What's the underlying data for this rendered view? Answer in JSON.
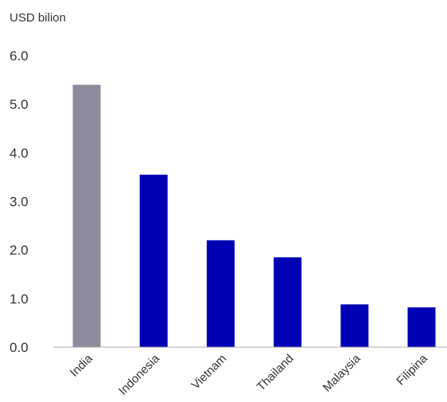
{
  "chart_data": {
    "type": "bar",
    "title": "",
    "xlabel": "",
    "ylabel": "USD bilion",
    "ylim": [
      0,
      6
    ],
    "yticks": [
      "0.0",
      "1.0",
      "2.0",
      "3.0",
      "4.0",
      "5.0",
      "6.0"
    ],
    "categories": [
      "India",
      "Indonesia",
      "Vietnam",
      "Thailand",
      "Malaysia",
      "Filipina"
    ],
    "values": [
      5.4,
      3.55,
      2.2,
      1.85,
      0.88,
      0.82
    ],
    "bar_colors": [
      "#8c8c9c",
      "#0000b4",
      "#0000b4",
      "#0000b4",
      "#0000b4",
      "#0000b4"
    ],
    "grid": false,
    "legend": "none"
  }
}
